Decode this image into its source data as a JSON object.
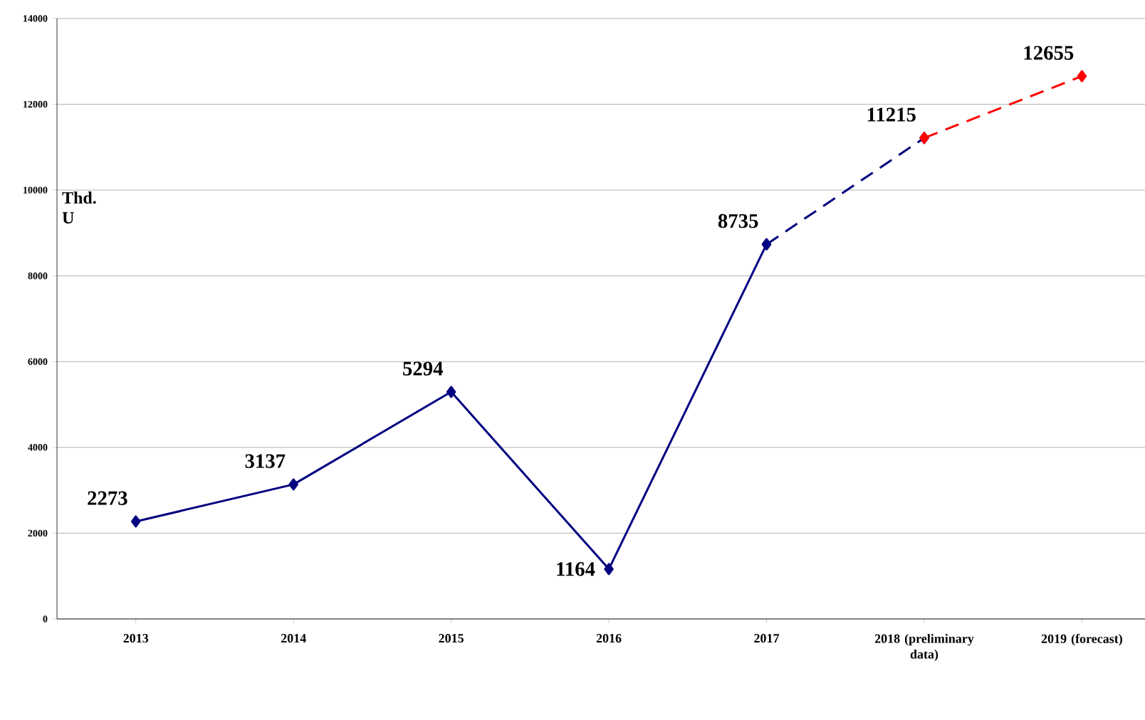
{
  "chart_data": {
    "type": "line",
    "ylabel": "Thd. U",
    "categories": [
      "2013",
      "2014",
      "2015",
      "2016",
      "2017",
      "2018 (preliminary data)",
      "2019 (forecast)"
    ],
    "series": [
      {
        "color": "#000080",
        "line_style": "solid",
        "values": [
          2273,
          3137,
          5294,
          1164,
          8735,
          null,
          null
        ],
        "value_labels": [
          "2273",
          "3137",
          "5294",
          "1164",
          "8735",
          null,
          null
        ]
      },
      {
        "color": "#000080",
        "line_style": "dashed",
        "values": [
          null,
          null,
          null,
          null,
          8735,
          11215,
          null
        ],
        "value_labels": [
          null,
          null,
          null,
          null,
          null,
          "11215",
          null
        ]
      },
      {
        "color": "#ff0000",
        "line_style": "dashed",
        "values": [
          null,
          null,
          null,
          null,
          null,
          11215,
          12655
        ],
        "value_labels": [
          null,
          null,
          null,
          null,
          null,
          null,
          "12655"
        ]
      }
    ],
    "ylim": [
      0,
      14000
    ],
    "yticks": [
      0,
      2000,
      4000,
      6000,
      8000,
      10000,
      12000,
      14000
    ],
    "grid": "y",
    "marker": "diamond"
  }
}
